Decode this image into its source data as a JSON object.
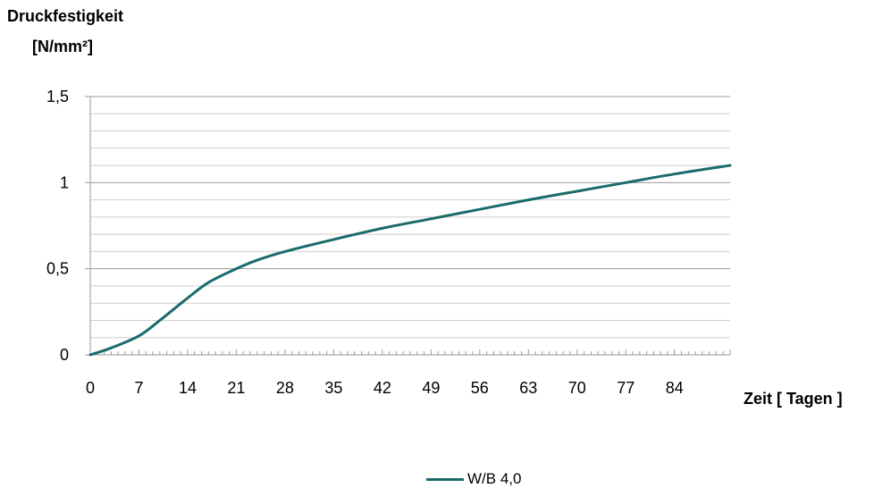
{
  "chart_data": {
    "type": "line",
    "ylabel_lines": [
      "Druckfestigkeit",
      "[N/mm²]"
    ],
    "xlabel": "Zeit [ Tagen ]",
    "xlim": [
      0,
      92
    ],
    "ylim": [
      0,
      1.5
    ],
    "x_ticks": [
      0,
      7,
      14,
      21,
      28,
      35,
      42,
      49,
      56,
      63,
      70,
      77,
      84
    ],
    "x_tick_labels": [
      "0",
      "7",
      "14",
      "21",
      "28",
      "35",
      "42",
      "49",
      "56",
      "63",
      "70",
      "77",
      "84"
    ],
    "y_ticks": [
      0,
      0.5,
      1,
      1.5
    ],
    "y_tick_labels": [
      "0",
      "0,5",
      "1",
      "1,5"
    ],
    "y_minor_step": 0.1,
    "x_minor_step": 1,
    "grid": true,
    "legend_position": "bottom-center",
    "series": [
      {
        "name": "W/B 4,0",
        "color": "#1a6b6b",
        "x": [
          0,
          3,
          7,
          10,
          14,
          17,
          21,
          24,
          28,
          35,
          42,
          49,
          56,
          63,
          70,
          77,
          84,
          92
        ],
        "y": [
          0,
          0.04,
          0.11,
          0.2,
          0.33,
          0.42,
          0.5,
          0.55,
          0.6,
          0.67,
          0.735,
          0.79,
          0.845,
          0.9,
          0.95,
          1.0,
          1.05,
          1.1
        ]
      }
    ]
  }
}
